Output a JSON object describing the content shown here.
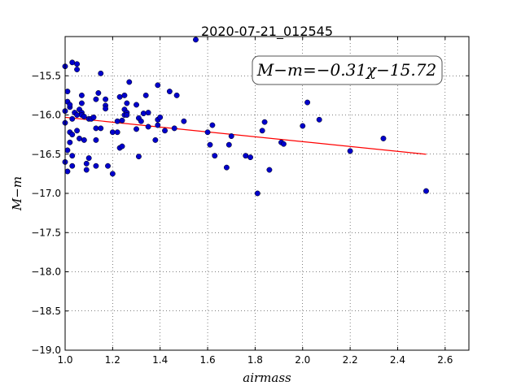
{
  "chart_data": {
    "type": "scatter",
    "title": "2020-07-21_012545",
    "xlabel": "airmass",
    "ylabel": "M−m",
    "xlim": [
      1.0,
      2.7
    ],
    "ylim": [
      -19.0,
      -15.0
    ],
    "y_inverted": true,
    "grid": true,
    "xticks": [
      1.0,
      1.2,
      1.4,
      1.6,
      1.8,
      2.0,
      2.2,
      2.4,
      2.6
    ],
    "xtick_labels": [
      "1.0",
      "1.2",
      "1.4",
      "1.6",
      "1.8",
      "2.0",
      "2.2",
      "2.4",
      "2.6"
    ],
    "yticks": [
      -15.5,
      -16.0,
      -16.5,
      -17.0,
      -17.5,
      -18.0,
      -18.5,
      -19.0
    ],
    "ytick_labels": [
      "−15.5",
      "−16.0",
      "−16.5",
      "−17.0",
      "−17.5",
      "−18.0",
      "−18.5",
      "−19.0"
    ],
    "annotation": "M−m=−0.31χ−15.72",
    "fit_line": {
      "slope": -0.31,
      "intercept": -15.72,
      "x_range": [
        1.0,
        2.52
      ],
      "color": "#ff0000"
    },
    "series": [
      {
        "marker_color": "#0000cc",
        "points": [
          [
            1.0,
            -15.38
          ],
          [
            1.01,
            -15.7
          ],
          [
            1.0,
            -15.95
          ],
          [
            1.0,
            -16.1
          ],
          [
            1.0,
            -16.6
          ],
          [
            1.01,
            -16.72
          ],
          [
            1.01,
            -16.45
          ],
          [
            1.01,
            -15.83
          ],
          [
            1.02,
            -15.9
          ],
          [
            1.02,
            -15.87
          ],
          [
            1.02,
            -16.22
          ],
          [
            1.02,
            -16.35
          ],
          [
            1.03,
            -15.33
          ],
          [
            1.03,
            -16.05
          ],
          [
            1.03,
            -16.25
          ],
          [
            1.03,
            -16.52
          ],
          [
            1.03,
            -16.65
          ],
          [
            1.04,
            -15.97
          ],
          [
            1.05,
            -15.35
          ],
          [
            1.05,
            -15.42
          ],
          [
            1.05,
            -16.0
          ],
          [
            1.05,
            -16.2
          ],
          [
            1.06,
            -15.93
          ],
          [
            1.06,
            -16.3
          ],
          [
            1.07,
            -15.75
          ],
          [
            1.07,
            -15.85
          ],
          [
            1.07,
            -15.97
          ],
          [
            1.07,
            -16.0
          ],
          [
            1.08,
            -16.02
          ],
          [
            1.08,
            -16.32
          ],
          [
            1.09,
            -16.62
          ],
          [
            1.09,
            -16.7
          ],
          [
            1.1,
            -16.05
          ],
          [
            1.1,
            -16.55
          ],
          [
            1.11,
            -16.05
          ],
          [
            1.12,
            -16.03
          ],
          [
            1.13,
            -15.8
          ],
          [
            1.13,
            -16.17
          ],
          [
            1.13,
            -16.32
          ],
          [
            1.13,
            -16.65
          ],
          [
            1.14,
            -15.72
          ],
          [
            1.15,
            -15.47
          ],
          [
            1.15,
            -16.17
          ],
          [
            1.17,
            -15.8
          ],
          [
            1.17,
            -15.88
          ],
          [
            1.17,
            -15.92
          ],
          [
            1.18,
            -16.65
          ],
          [
            1.2,
            -16.22
          ],
          [
            1.2,
            -16.75
          ],
          [
            1.22,
            -16.08
          ],
          [
            1.22,
            -16.22
          ],
          [
            1.23,
            -15.77
          ],
          [
            1.23,
            -16.42
          ],
          [
            1.24,
            -16.07
          ],
          [
            1.24,
            -16.4
          ],
          [
            1.25,
            -15.75
          ],
          [
            1.25,
            -15.93
          ],
          [
            1.25,
            -16.0
          ],
          [
            1.26,
            -15.85
          ],
          [
            1.26,
            -15.97
          ],
          [
            1.26,
            -16.0
          ],
          [
            1.27,
            -15.58
          ],
          [
            1.3,
            -15.87
          ],
          [
            1.3,
            -16.18
          ],
          [
            1.31,
            -16.04
          ],
          [
            1.31,
            -16.53
          ],
          [
            1.32,
            -16.08
          ],
          [
            1.33,
            -15.98
          ],
          [
            1.34,
            -15.75
          ],
          [
            1.35,
            -15.97
          ],
          [
            1.35,
            -16.15
          ],
          [
            1.38,
            -16.32
          ],
          [
            1.39,
            -15.62
          ],
          [
            1.39,
            -16.06
          ],
          [
            1.39,
            -16.13
          ],
          [
            1.4,
            -16.03
          ],
          [
            1.42,
            -16.2
          ],
          [
            1.44,
            -15.7
          ],
          [
            1.46,
            -16.17
          ],
          [
            1.47,
            -15.75
          ],
          [
            1.5,
            -16.08
          ],
          [
            1.55,
            -15.04
          ],
          [
            1.6,
            -16.22
          ],
          [
            1.61,
            -16.38
          ],
          [
            1.62,
            -16.13
          ],
          [
            1.63,
            -16.52
          ],
          [
            1.68,
            -16.67
          ],
          [
            1.69,
            -16.38
          ],
          [
            1.7,
            -16.27
          ],
          [
            1.76,
            -16.52
          ],
          [
            1.78,
            -16.54
          ],
          [
            1.81,
            -17.0
          ],
          [
            1.83,
            -16.2
          ],
          [
            1.84,
            -16.09
          ],
          [
            1.86,
            -16.7
          ],
          [
            1.91,
            -16.35
          ],
          [
            1.92,
            -16.37
          ],
          [
            2.0,
            -16.14
          ],
          [
            2.02,
            -15.84
          ],
          [
            2.07,
            -16.06
          ],
          [
            2.2,
            -16.46
          ],
          [
            2.34,
            -16.3
          ],
          [
            2.52,
            -16.97
          ]
        ]
      }
    ]
  }
}
